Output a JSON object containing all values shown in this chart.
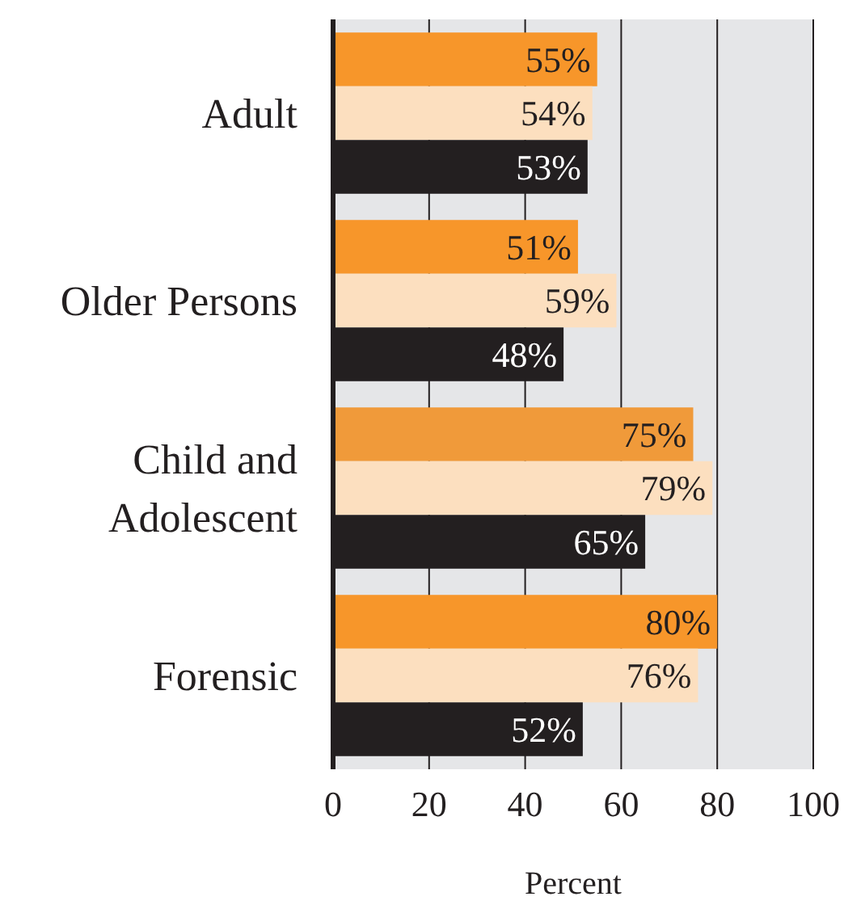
{
  "chart_data": {
    "type": "bar",
    "orientation": "horizontal",
    "xlabel": "Percent",
    "categories": [
      "Adult",
      "Older Persons",
      "Child and Adolescent",
      "Forensic"
    ],
    "series": [
      {
        "colors": [
          "#f7962a",
          "#f7962a",
          "#f09a3a",
          "#f7962a"
        ],
        "values": [
          55,
          51,
          75,
          80
        ],
        "value_labels": [
          "55%",
          "51%",
          "75%",
          "80%"
        ]
      },
      {
        "color": "#fcdfbf",
        "values": [
          54,
          59,
          79,
          76
        ],
        "value_labels": [
          "54%",
          "59%",
          "79%",
          "76%"
        ]
      },
      {
        "color": "#231f20",
        "values": [
          53,
          48,
          65,
          52
        ],
        "value_labels": [
          "53%",
          "48%",
          "65%",
          "52%"
        ]
      }
    ],
    "xlim": [
      0,
      100
    ],
    "xticks": [
      0,
      20,
      40,
      60,
      80,
      100
    ],
    "grid": "x"
  }
}
